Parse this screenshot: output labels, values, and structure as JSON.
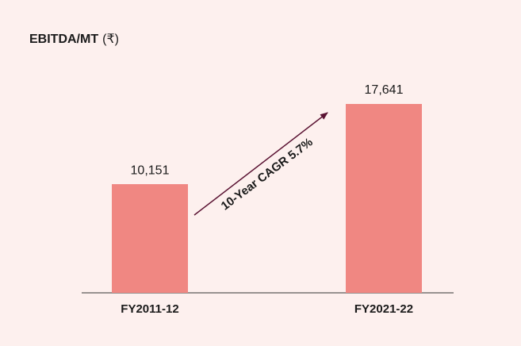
{
  "chart_data": {
    "type": "bar",
    "title": "EBITDA/MT",
    "unit": "(₹)",
    "categories": [
      "FY2011-12",
      "FY2021-22"
    ],
    "values": [
      10151,
      17641
    ],
    "value_labels": [
      "10,151",
      "17,641"
    ],
    "color": "#f08782",
    "annotation": "10-Year CAGR 5.7%"
  }
}
